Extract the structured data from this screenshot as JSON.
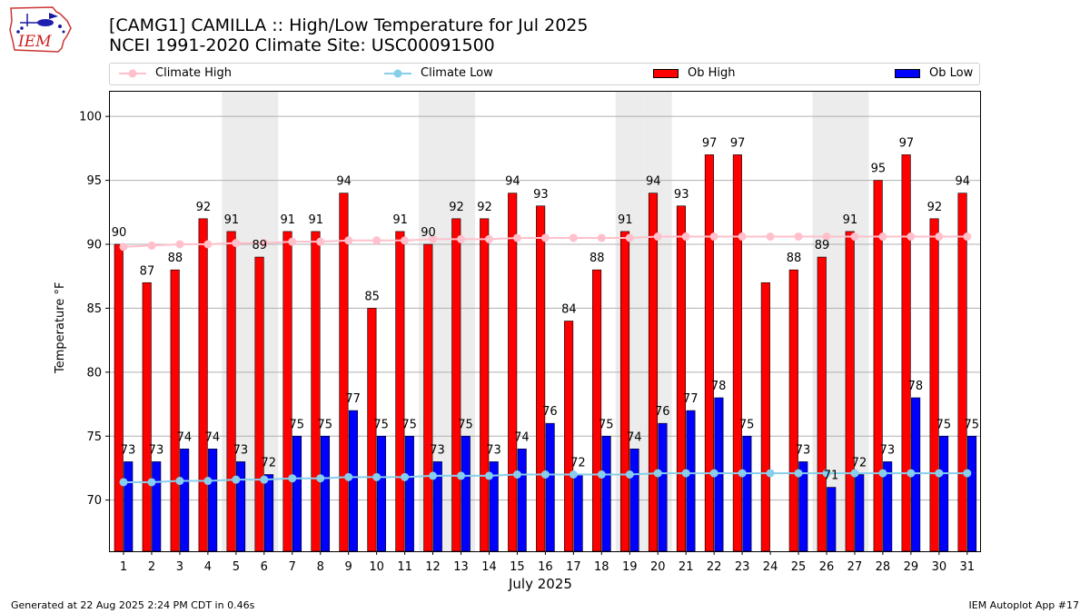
{
  "logo": {
    "text": "IEM"
  },
  "title_line1": "[CAMG1] CAMILLA :: High/Low Temperature for Jul 2025",
  "title_line2": "NCEI 1991-2020 Climate Site: USC00091500",
  "legend": {
    "climate_high": "Climate High",
    "climate_low": "Climate Low",
    "ob_high": "Ob High",
    "ob_low": "Ob Low"
  },
  "footer": {
    "left": "Generated at 22 Aug 2025 2:24 PM CDT in 0.46s",
    "right": "IEM Autoplot App #17"
  },
  "colors": {
    "ob_high": "#ff0000",
    "ob_low": "#0000ff",
    "climate_high": "#ffc0cb",
    "climate_low": "#87ceeb",
    "weekend_band": "#ececec",
    "grid": "#b0b0b0"
  },
  "chart_data": {
    "type": "bar",
    "title": "[CAMG1] CAMILLA :: High/Low Temperature for Jul 2025",
    "xlabel": "July 2025",
    "ylabel": "Temperature °F",
    "ylim": [
      66,
      102
    ],
    "yticks": [
      70,
      75,
      80,
      85,
      90,
      95,
      100
    ],
    "grid": true,
    "legend_position": "top",
    "categories": [
      "1",
      "2",
      "3",
      "4",
      "5",
      "6",
      "7",
      "8",
      "9",
      "10",
      "11",
      "12",
      "13",
      "14",
      "15",
      "16",
      "17",
      "18",
      "19",
      "20",
      "21",
      "22",
      "23",
      "24",
      "25",
      "26",
      "27",
      "28",
      "29",
      "30",
      "31"
    ],
    "highlight_days": [
      5,
      6,
      12,
      13,
      19,
      20,
      26,
      27
    ],
    "series": [
      {
        "name": "Ob High",
        "type": "bar",
        "values": [
          90,
          87,
          88,
          92,
          91,
          89,
          91,
          91,
          94,
          85,
          91,
          90,
          92,
          92,
          94,
          93,
          84,
          88,
          91,
          94,
          93,
          97,
          97,
          87,
          88,
          89,
          91,
          95,
          97,
          92,
          94
        ],
        "labels": [
          "90",
          "87",
          "88",
          "92",
          "91",
          "89",
          "91",
          "91",
          "94",
          "85",
          "91",
          "90",
          "92",
          "92",
          "94",
          "93",
          "84",
          "88",
          "91",
          "94",
          "93",
          "97",
          "97",
          "",
          "88",
          "89",
          "91",
          "95",
          "97",
          "92",
          "94"
        ]
      },
      {
        "name": "Ob Low",
        "type": "bar",
        "values": [
          73,
          73,
          74,
          74,
          73,
          72,
          75,
          75,
          77,
          75,
          75,
          73,
          75,
          73,
          74,
          76,
          72,
          75,
          74,
          76,
          77,
          78,
          75,
          null,
          73,
          71,
          72,
          73,
          78,
          75,
          75
        ],
        "labels": [
          "73",
          "73",
          "74",
          "74",
          "73",
          "72",
          "75",
          "75",
          "77",
          "75",
          "75",
          "73",
          "75",
          "73",
          "74",
          "76",
          "72",
          "75",
          "74",
          "76",
          "77",
          "78",
          "75",
          "",
          "73",
          "71",
          "72",
          "73",
          "78",
          "75",
          "75"
        ]
      },
      {
        "name": "Climate High",
        "type": "line",
        "values": [
          89.8,
          89.9,
          90.0,
          90.0,
          90.1,
          90.1,
          90.2,
          90.2,
          90.3,
          90.3,
          90.3,
          90.4,
          90.4,
          90.4,
          90.5,
          90.5,
          90.5,
          90.5,
          90.5,
          90.6,
          90.6,
          90.6,
          90.6,
          90.6,
          90.6,
          90.6,
          90.6,
          90.6,
          90.6,
          90.6,
          90.6
        ]
      },
      {
        "name": "Climate Low",
        "type": "line",
        "values": [
          71.4,
          71.4,
          71.5,
          71.5,
          71.6,
          71.6,
          71.7,
          71.7,
          71.8,
          71.8,
          71.8,
          71.9,
          71.9,
          71.9,
          72.0,
          72.0,
          72.0,
          72.0,
          72.0,
          72.1,
          72.1,
          72.1,
          72.1,
          72.1,
          72.1,
          72.1,
          72.1,
          72.1,
          72.1,
          72.1,
          72.1
        ]
      }
    ]
  }
}
